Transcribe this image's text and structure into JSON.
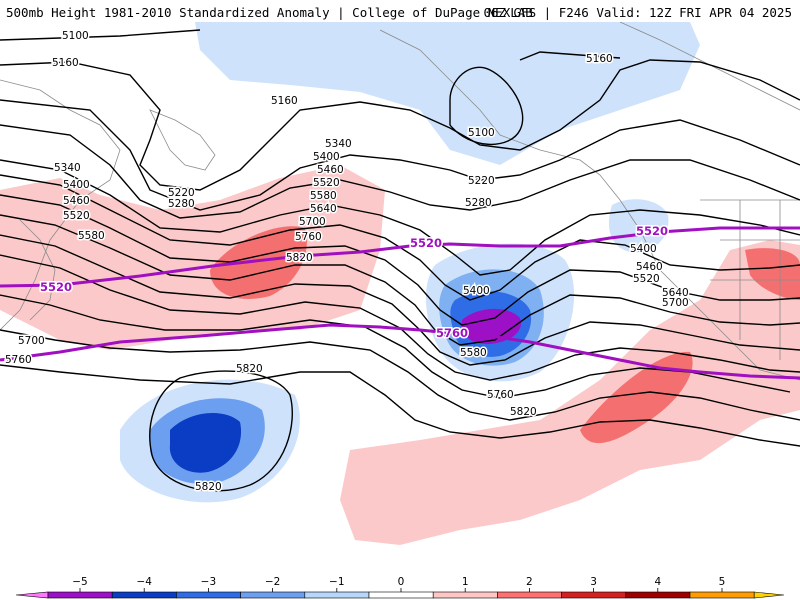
{
  "header": {
    "title_left": "500mb Height 1981-2010 Standardized Anomaly | College of DuPage NEXLAB",
    "title_right": "06Z GFS | F246 Valid: 12Z FRI APR 04 2025"
  },
  "contour_labels": [
    "5100",
    "5160",
    "5160",
    "5160",
    "5100",
    "5220",
    "5280",
    "5220",
    "5280",
    "5340",
    "5400",
    "5460",
    "5520",
    "5580",
    "5640",
    "5700",
    "5760",
    "5820",
    "5340",
    "5400",
    "5460",
    "5520",
    "5580",
    "5700",
    "5760",
    "5400",
    "5580",
    "5400",
    "5460",
    "5520",
    "5640",
    "5700",
    "5760",
    "5820",
    "5820",
    "5820"
  ],
  "highlight_labels": [
    "5520",
    "5520",
    "5520",
    "5760"
  ],
  "legend": {
    "ticks": [
      "−5",
      "−4",
      "−3",
      "−2",
      "−1",
      "0",
      "1",
      "2",
      "3",
      "4",
      "5"
    ],
    "colors": [
      "#ff77ff",
      "#9c10c8",
      "#0a3cc4",
      "#2e6de6",
      "#6c9ff0",
      "#b6d6fb",
      "#ffffff",
      "#ffc6c6",
      "#ff7070",
      "#d42020",
      "#9c0000",
      "#ff9c00",
      "#ffd200"
    ]
  },
  "colors": {
    "highlight_contour": "#a010c0",
    "coast": "#8c8c8c"
  }
}
